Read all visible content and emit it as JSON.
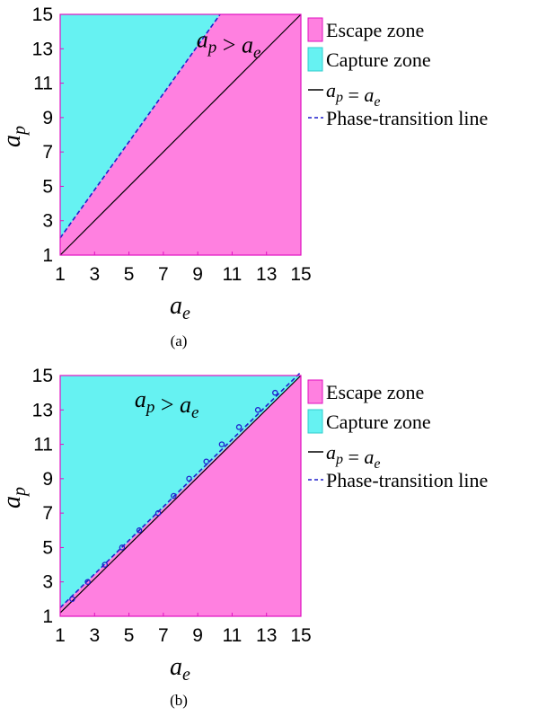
{
  "colors": {
    "escape": "#ff80e0",
    "capture": "#66f2f2",
    "phase_line": "#1f1fcc",
    "diagonal": "#000000",
    "axis": "#e010c0"
  },
  "legend": {
    "escape": "Escape zone",
    "capture": "Capture zone",
    "equal_lhs": "a",
    "equal_lhs_sub": "p",
    "equal_op": " = ",
    "equal_rhs": "a",
    "equal_rhs_sub": "e",
    "phase": "Phase-transition line"
  },
  "chart_data": [
    {
      "type": "area",
      "caption": "(a)",
      "xlabel": "a",
      "xlabel_sub": "e",
      "ylabel": "a",
      "ylabel_sub": "p",
      "xlim": [
        1,
        15
      ],
      "ylim": [
        1,
        15
      ],
      "xticks": [
        1,
        3,
        5,
        7,
        9,
        11,
        13,
        15
      ],
      "yticks": [
        1,
        3,
        5,
        7,
        9,
        11,
        13,
        15
      ],
      "annotation": {
        "lhs": "a",
        "lhs_sub": "p",
        "op": " > ",
        "rhs": "a",
        "rhs_sub": "e",
        "at": [
          10.8,
          13.5
        ]
      },
      "series": [
        {
          "name": "Phase-transition line",
          "kind": "dashed",
          "x": [
            1,
            10.3
          ],
          "y": [
            2,
            15
          ]
        },
        {
          "name": "a_p = a_e",
          "kind": "solid",
          "x": [
            1,
            15
          ],
          "y": [
            1,
            15
          ]
        }
      ],
      "markers": {
        "x": [],
        "y": []
      }
    },
    {
      "type": "area",
      "caption": "(b)",
      "xlabel": "a",
      "xlabel_sub": "e",
      "ylabel": "a",
      "ylabel_sub": "p",
      "xlim": [
        1,
        15
      ],
      "ylim": [
        1,
        15
      ],
      "xticks": [
        1,
        3,
        5,
        7,
        9,
        11,
        13,
        15
      ],
      "yticks": [
        1,
        3,
        5,
        7,
        9,
        11,
        13,
        15
      ],
      "annotation": {
        "lhs": "a",
        "lhs_sub": "p",
        "op": " > ",
        "rhs": "a",
        "rhs_sub": "e",
        "at": [
          7.2,
          13.6
        ]
      },
      "series": [
        {
          "name": "Phase-transition line",
          "kind": "dashed",
          "x": [
            1,
            15
          ],
          "y": [
            1.5,
            15.2
          ]
        },
        {
          "name": "a_p = a_e",
          "kind": "solid",
          "x": [
            1,
            15
          ],
          "y": [
            1.2,
            15
          ]
        }
      ],
      "markers": {
        "x": [
          1.7,
          2.6,
          3.6,
          4.6,
          5.6,
          6.7,
          7.6,
          8.5,
          9.5,
          10.4,
          11.4,
          12.5,
          13.5
        ],
        "y": [
          2,
          3,
          4,
          5,
          6,
          7,
          8,
          9,
          10,
          11,
          12,
          13,
          14
        ]
      }
    }
  ]
}
